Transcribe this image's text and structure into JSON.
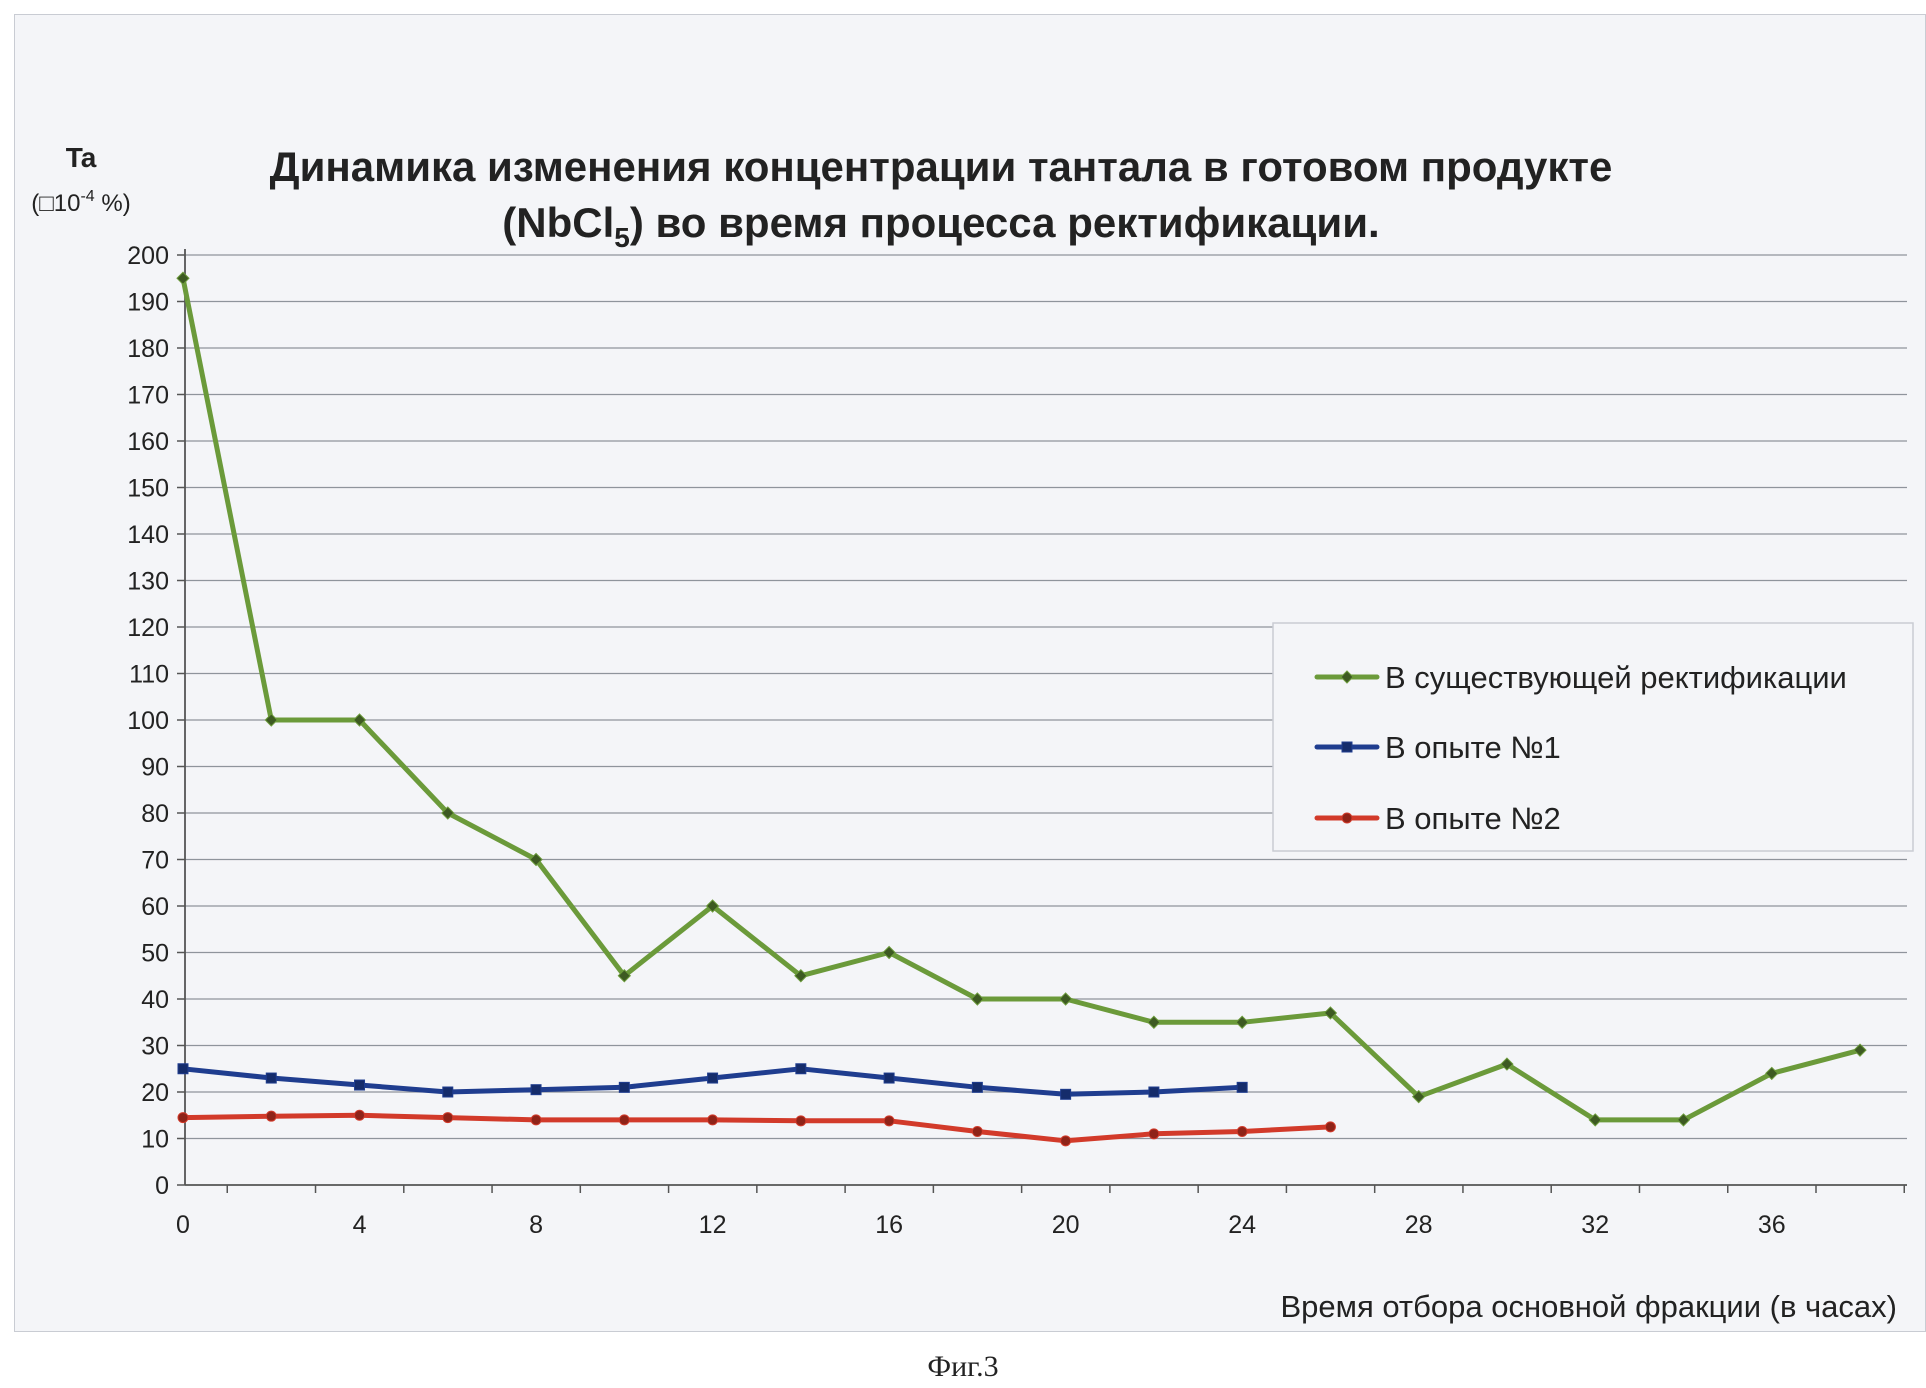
{
  "figure": {
    "caption": "Фиг.3"
  },
  "chart_data": {
    "type": "line",
    "title_line1": "Динамика изменения концентрации тантала в готовом продукте",
    "title_line2_prefix": "(NbCl",
    "title_line2_sub": "5",
    "title_line2_suffix": ") во время процесса ректификации.",
    "ylabel_main": "Ta",
    "ylabel_unit_prefix": "(□10",
    "ylabel_unit_sup": "-4",
    "ylabel_unit_suffix": " %)",
    "xlabel": "Время отбора основной фракции (в часах)",
    "ylim": [
      0,
      200
    ],
    "xlim": [
      0,
      38
    ],
    "yticks": [
      0,
      10,
      20,
      30,
      40,
      50,
      60,
      70,
      80,
      90,
      100,
      110,
      120,
      130,
      140,
      150,
      160,
      170,
      180,
      190,
      200
    ],
    "xtick_labels": [
      0,
      4,
      8,
      12,
      16,
      20,
      24,
      28,
      32,
      36
    ],
    "grid": true,
    "legend_position": "right",
    "series": [
      {
        "name": "В существующей ректификации",
        "color": "#6b9a3a",
        "marker": "diamond",
        "x": [
          0,
          2,
          4,
          6,
          8,
          10,
          12,
          14,
          16,
          18,
          20,
          22,
          24,
          26,
          28,
          30,
          32,
          34,
          36,
          38
        ],
        "values": [
          195,
          100,
          100,
          80,
          70,
          45,
          60,
          45,
          50,
          40,
          40,
          35,
          35,
          37,
          19,
          26,
          14,
          14,
          24,
          29
        ]
      },
      {
        "name": "В опыте №1",
        "color": "#1f3d8f",
        "marker": "square",
        "x": [
          0,
          2,
          4,
          6,
          8,
          10,
          12,
          14,
          16,
          18,
          20,
          22,
          24
        ],
        "values": [
          25,
          23,
          21.5,
          20,
          20.5,
          21,
          23,
          25,
          23,
          21,
          19.5,
          20,
          21
        ]
      },
      {
        "name": "В опыте №2",
        "color": "#d23a2a",
        "marker": "circle",
        "x": [
          0,
          2,
          4,
          6,
          8,
          10,
          12,
          14,
          16,
          18,
          20,
          22,
          24,
          26
        ],
        "values": [
          14.5,
          14.8,
          15,
          14.5,
          14,
          14,
          14,
          13.8,
          13.8,
          11.5,
          9.5,
          11,
          11.5,
          12.5
        ]
      }
    ]
  }
}
